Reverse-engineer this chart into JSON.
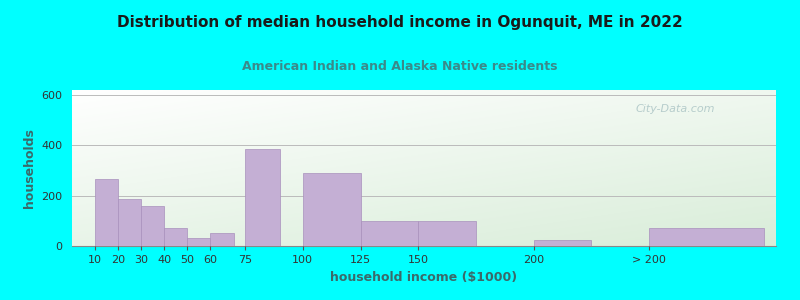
{
  "title": "Distribution of median household income in Ogunquit, ME in 2022",
  "subtitle": "American Indian and Alaska Native residents",
  "xlabel": "household income ($1000)",
  "ylabel": "households",
  "background_color": "#00FFFF",
  "plot_bg_top_left": "#d8edd8",
  "plot_bg_bottom_right": "#ffffff",
  "bar_color": "#c4afd4",
  "bar_edge_color": "#a890bc",
  "grid_color": "#bbbbbb",
  "title_color": "#1a1a1a",
  "subtitle_color": "#3a8a8a",
  "axis_label_color": "#3a6a6a",
  "tick_label_color": "#333333",
  "watermark_text": "City-Data.com",
  "watermark_color": "#b0c8c8",
  "ylim": [
    0,
    620
  ],
  "yticks": [
    0,
    200,
    400,
    600
  ],
  "bar_positions": [
    10,
    20,
    30,
    40,
    50,
    60,
    75,
    100,
    125,
    150,
    200,
    250
  ],
  "bar_heights": [
    265,
    185,
    160,
    70,
    30,
    50,
    385,
    290,
    100,
    100,
    25,
    70
  ],
  "bar_widths": [
    10,
    10,
    10,
    10,
    10,
    10,
    15,
    25,
    25,
    25,
    25,
    50
  ],
  "bar_labels": [
    "10",
    "20",
    "30",
    "40",
    "50",
    "60",
    "75",
    "100",
    "125",
    "150",
    "200",
    "> 200"
  ],
  "tick_positions": [
    10,
    20,
    30,
    40,
    50,
    60,
    75,
    100,
    125,
    150,
    200,
    250
  ],
  "xlim": [
    0,
    305
  ]
}
